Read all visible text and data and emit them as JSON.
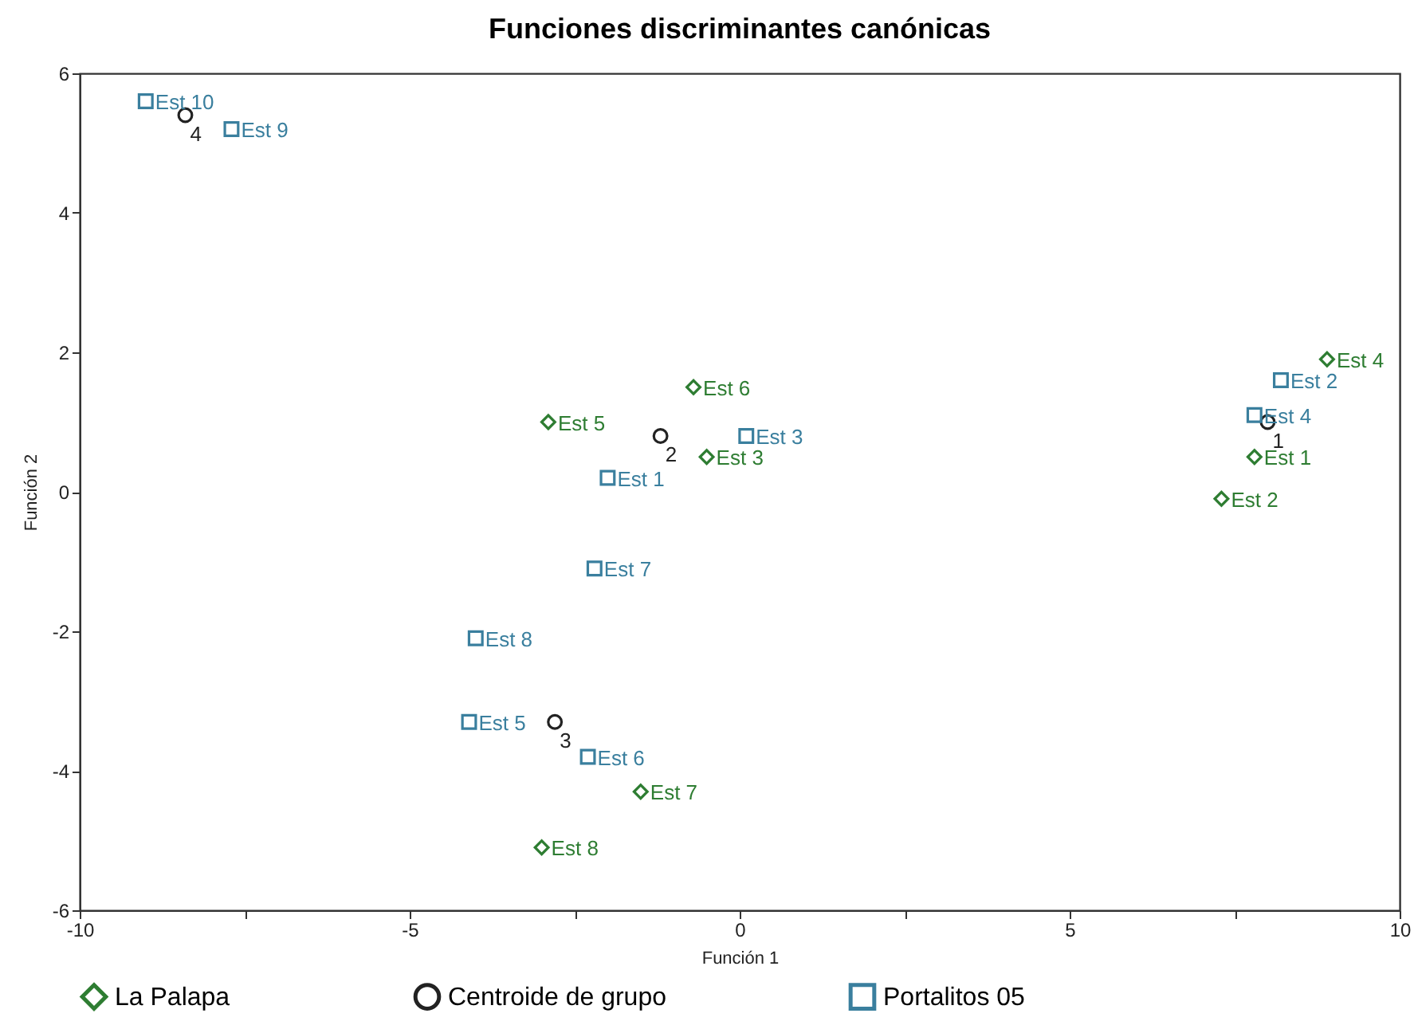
{
  "chart_data": {
    "type": "scatter",
    "title": "Funciones discriminantes canónicas",
    "xlabel": "Función 1",
    "ylabel": "Función 2",
    "xlim": [
      -10,
      10
    ],
    "ylim": [
      -6,
      6
    ],
    "xticks": [
      -10,
      {
        "value": -7.5,
        "label": null
      },
      -5,
      {
        "value": -2.5,
        "label": null
      },
      0,
      {
        "value": 2.5,
        "label": null
      },
      5,
      {
        "value": 7.5,
        "label": null
      },
      10
    ],
    "yticks": [
      -6,
      -4,
      -2,
      0,
      2,
      4,
      6
    ],
    "grid": false,
    "legend": "bottom",
    "annotations": [
      {
        "text": "1",
        "x": 8.0,
        "y": 1.0
      },
      {
        "text": "2",
        "x": -1.2,
        "y": 0.8
      },
      {
        "text": "3",
        "x": -2.8,
        "y": -3.3
      },
      {
        "text": "4",
        "x": -8.4,
        "y": 5.4
      }
    ],
    "series": [
      {
        "name": "La Palapa",
        "color": "#2e7d32",
        "marker": "diamond",
        "x": [
          7.8,
          7.3,
          -0.5,
          8.9,
          -2.9,
          -0.7,
          -1.5,
          -3.0
        ],
        "values": [
          0.5,
          -0.1,
          0.5,
          1.9,
          1.0,
          1.5,
          -4.3,
          -5.1
        ],
        "value_labels": [
          "Est 1",
          "Est 2",
          "Est 3",
          "Est 4",
          "Est 5",
          "Est 6",
          "Est 7",
          "Est 8"
        ]
      },
      {
        "name": "Centroide de grupo",
        "color": "#222222",
        "marker": "circle",
        "x": [
          8.0,
          -1.2,
          -2.8,
          -8.4
        ],
        "values": [
          1.0,
          0.8,
          -3.3,
          5.4
        ]
      },
      {
        "name": "Portalitos 05",
        "color": "#3a7f9e",
        "marker": "square",
        "x": [
          -2.0,
          8.2,
          0.1,
          7.8,
          -4.1,
          -2.3,
          -2.2,
          -4.0,
          -7.7,
          -9.0
        ],
        "values": [
          0.2,
          1.6,
          0.8,
          1.1,
          -3.3,
          -3.8,
          -1.1,
          -2.1,
          5.2,
          5.6
        ],
        "value_labels": [
          "Est 1",
          "Est 2",
          "Est 3",
          "Est 4",
          "Est 5",
          "Est 6",
          "Est 7",
          "Est 8",
          "Est 9",
          "Est 10"
        ]
      }
    ]
  }
}
